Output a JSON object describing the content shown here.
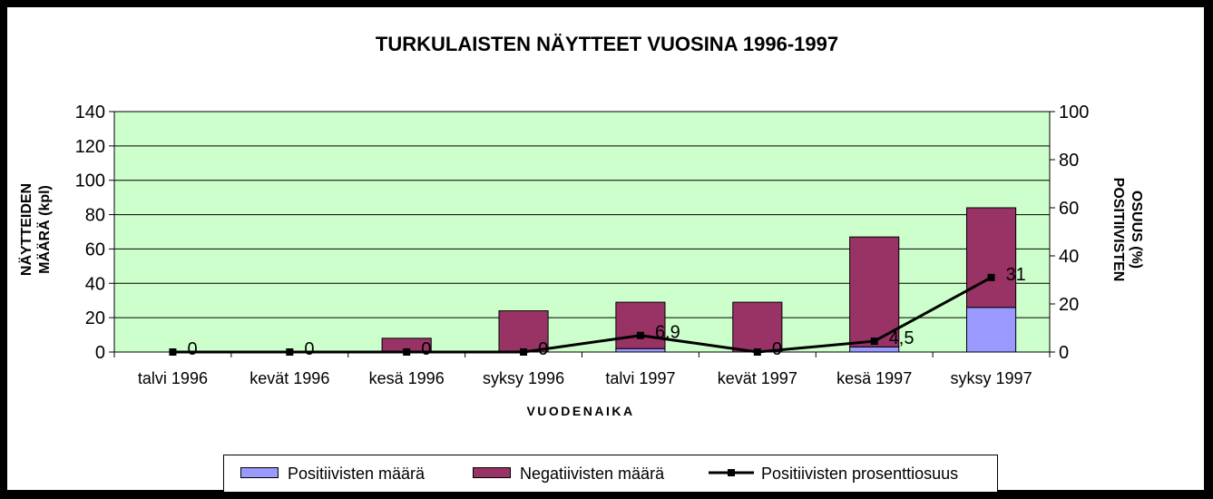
{
  "chart_data": {
    "type": "bar",
    "title": "TURKULAISTEN NÄYTTEET VUOSINA 1996-1997",
    "xlabel": "VUODENAIKA",
    "ylabel_line1": "NÄYTTEIDEN",
    "ylabel_line2": "MÄÄRÄ (kpl)",
    "y2label_line1": "POSITIIVISTEN",
    "y2label_line2": "OSUUS (%)",
    "categories": [
      "talvi 1996",
      "kevät 1996",
      "kesä 1996",
      "syksy 1996",
      "talvi 1997",
      "kevät 1997",
      "kesä 1997",
      "syksy 1997"
    ],
    "ylim": [
      0,
      140
    ],
    "yticks": [
      "0",
      "20",
      "40",
      "60",
      "80",
      "100",
      "120",
      "140"
    ],
    "y2lim": [
      0,
      100
    ],
    "y2ticks": [
      "0",
      "20",
      "40",
      "60",
      "80",
      "100"
    ],
    "grid": true,
    "legend_position": "bottom",
    "plot_background": "#ccffcc",
    "series": [
      {
        "name": "Positiivisten määrä",
        "type": "bar",
        "stacked": true,
        "color": "#9999ff",
        "values": [
          0,
          0,
          0,
          0,
          2,
          0,
          3,
          26
        ]
      },
      {
        "name": "Negatiivisten määrä",
        "type": "bar",
        "stacked": true,
        "color": "#993366",
        "values": [
          0,
          0,
          8,
          24,
          27,
          29,
          64,
          58
        ]
      },
      {
        "name": "Positiivisten prosenttiosuus",
        "type": "line",
        "axis": "right",
        "color": "#000000",
        "values": [
          0,
          0,
          0,
          0,
          6.9,
          0,
          4.5,
          31
        ],
        "labels": [
          "0",
          "0",
          "0",
          "0",
          "6,9",
          "0",
          "4,5",
          "31"
        ]
      }
    ]
  }
}
